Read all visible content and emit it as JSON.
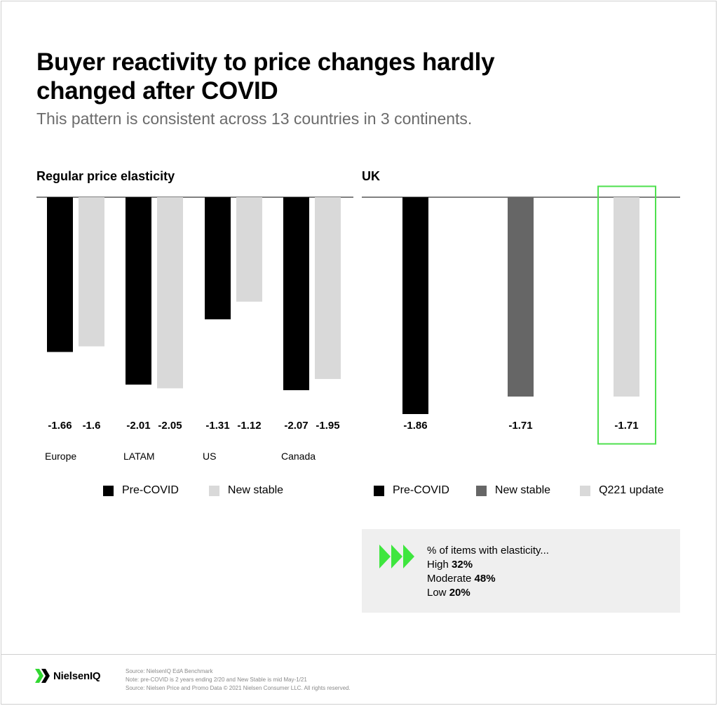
{
  "title": "Buyer reactivity to price changes hardly changed after COVID",
  "subtitle": "This pattern is consistent across 13 countries in 3 continents.",
  "colors": {
    "pre_covid": "#000000",
    "new_stable": "#d9d9d9",
    "uk_new_stable": "#666666",
    "q221_update": "#d9d9d9",
    "highlight": "#4ee04e",
    "callout_bg": "#efefef"
  },
  "chart_data": [
    {
      "type": "bar",
      "title": "Regular price elasticity",
      "categories": [
        "Europe",
        "LATAM",
        "US",
        "Canada"
      ],
      "series": [
        {
          "name": "Pre-COVID",
          "values": [
            -1.66,
            -2.01,
            -1.31,
            -2.07
          ]
        },
        {
          "name": "New stable",
          "values": [
            -1.6,
            -2.05,
            -1.12,
            -1.95
          ]
        }
      ],
      "labels": [
        [
          "-1.66",
          "-1.6"
        ],
        [
          "-2.01",
          "-2.05"
        ],
        [
          "-1.31",
          "-1.12"
        ],
        [
          "-2.07",
          "-1.95"
        ]
      ],
      "legend": [
        "Pre-COVID",
        "New stable"
      ],
      "legend_position": "bottom",
      "ylim": [
        -2.07,
        0
      ]
    },
    {
      "type": "bar",
      "title": "UK",
      "categories": [
        "Pre-COVID",
        "New stable",
        "Q221 update"
      ],
      "values": [
        -1.86,
        -1.71,
        -1.71
      ],
      "labels": [
        "-1.86",
        "-1.71",
        "-1.71"
      ],
      "legend": [
        "Pre-COVID",
        "New stable",
        "Q221 update"
      ],
      "legend_position": "bottom",
      "highlighted": "Q221 update",
      "ylim": [
        -1.86,
        0
      ]
    }
  ],
  "callout": {
    "icon": "triple-chevron-right-icon",
    "heading": "% of items with elasticity...",
    "rows": [
      {
        "label": "High",
        "value": "32%"
      },
      {
        "label": "Moderate",
        "value": "48%"
      },
      {
        "label": "Low",
        "value": "20%"
      }
    ]
  },
  "footer": {
    "logo_text": "NielsenIQ",
    "sources": [
      "Source: NielsenIQ EdA Benchmark",
      "Note: pre-COVID is 2 years ending 2/20 and New Stable is mid May-1/21",
      "Source: Nielsen Price and Promo Data © 2021 Nielsen Consumer LLC. All rights reserved."
    ]
  }
}
